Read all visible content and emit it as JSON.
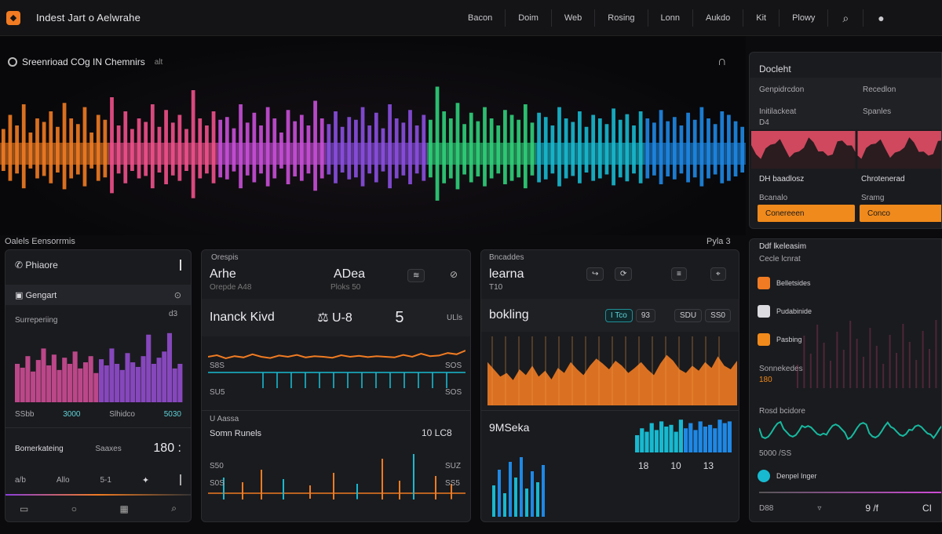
{
  "header": {
    "logo_icon": "flame-icon",
    "title": "Indest  Jart  o  Aelwrahe",
    "nav": [
      "Bacon",
      "Doim",
      "Web",
      "Rosing",
      "Lonn",
      "Aukdo",
      "Kit",
      "Plowy"
    ],
    "search_icon": "search-icon",
    "user_icon": "user-icon"
  },
  "hero": {
    "title": "Sreenrioad COg IN Chemnirs",
    "subtitle": "alt",
    "bars": [
      0.35,
      0.55,
      0.4,
      0.7,
      0.3,
      0.5,
      0.45,
      0.6,
      0.38,
      0.72,
      0.5,
      0.42,
      0.66,
      0.3,
      0.55,
      0.48,
      0.8,
      0.4,
      0.6,
      0.35,
      0.5,
      0.45,
      0.7,
      0.38,
      0.62,
      0.44,
      0.55,
      0.35,
      0.9,
      0.5,
      0.4,
      0.6,
      0.48,
      0.52,
      0.36,
      0.7,
      0.44,
      0.58,
      0.4,
      0.66,
      0.5,
      0.3,
      0.62,
      0.46,
      0.55,
      0.4,
      0.75,
      0.5,
      0.42,
      0.6,
      0.38,
      0.52,
      0.48,
      0.66,
      0.4,
      0.58,
      0.36,
      0.7,
      0.5,
      0.44,
      0.62,
      0.4,
      0.55,
      0.48,
      0.95,
      0.6,
      0.5,
      0.72,
      0.42,
      0.58,
      0.46,
      0.66,
      0.5,
      0.4,
      0.62,
      0.55,
      0.48,
      0.7,
      0.44,
      0.58,
      0.52,
      0.4,
      0.66,
      0.5,
      0.45,
      0.6,
      0.38,
      0.55,
      0.5,
      0.42,
      0.64,
      0.48,
      0.56,
      0.4,
      0.6,
      0.5,
      0.44,
      0.62,
      0.46,
      0.52,
      0.4,
      0.58,
      0.48,
      0.66,
      0.5,
      0.42,
      0.6,
      0.55,
      0.46,
      0.38
    ],
    "colors": [
      "#f07b22",
      "#f0508a",
      "#c84fd8",
      "#8a4fe0",
      "#2fd17a",
      "#17b9d0",
      "#1e88e5"
    ]
  },
  "labels": {
    "left": "Oalels Eensorrmis",
    "right": "Pyla 3"
  },
  "panel_a": {
    "title": "Phiaore",
    "section": "Gengart",
    "subtitle": "Surreperiing",
    "axis": [
      "SSbb",
      "3000",
      "Slhidco",
      "5030"
    ],
    "axis_right": "d3",
    "footer": "Bomerkateing",
    "footer_mid": "Saaxes",
    "footer_val": "180 :",
    "ctrl": [
      "a/b",
      "Allo",
      "5-1"
    ],
    "bars": [
      0.5,
      0.45,
      0.6,
      0.4,
      0.55,
      0.7,
      0.48,
      0.62,
      0.42,
      0.58,
      0.5,
      0.66,
      0.44,
      0.52,
      0.6,
      0.38,
      0.56,
      0.48,
      0.7,
      0.5,
      0.42,
      0.64,
      0.52,
      0.46,
      0.6,
      0.88,
      0.5,
      0.58,
      0.66,
      0.9,
      0.44,
      0.5
    ]
  },
  "panel_b": {
    "label": "Orespis",
    "name": "Arhe",
    "sub": "Orepde A48",
    "value": "ADea",
    "value_sub": "Ploks 50",
    "row2_label": "Inanck Kivd",
    "row2_val": "U-8",
    "row2_num": "5",
    "row2_tail": "ULls",
    "line_labels": [
      "S8S",
      "SOS",
      "SU5",
      "SOS"
    ],
    "sec2": "U Aassa",
    "sec2_title": "Somn Runels",
    "sec2_val": "10 LC8",
    "axis": [
      "S50",
      "SUZ",
      "S0S",
      "SS5"
    ],
    "line": [
      0.5,
      0.55,
      0.45,
      0.52,
      0.48,
      0.58,
      0.5,
      0.46,
      0.54,
      0.5,
      0.56,
      0.48,
      0.52,
      0.5,
      0.47,
      0.55,
      0.5,
      0.53,
      0.49,
      0.52,
      0.5,
      0.48,
      0.56,
      0.5,
      0.6,
      0.52,
      0.54,
      0.62,
      0.58,
      0.7
    ]
  },
  "panel_c": {
    "label": "Bncaddes",
    "title": "learna",
    "sub": "T10",
    "row2_label": "bokling",
    "pills": [
      "I Tco",
      "93",
      "SDU",
      "SS0"
    ],
    "sec2_title": "9MSeka",
    "sec2_vals": [
      "18",
      "10",
      "13"
    ],
    "area": [
      0.6,
      0.5,
      0.4,
      0.45,
      0.35,
      0.5,
      0.42,
      0.55,
      0.4,
      0.48,
      0.36,
      0.52,
      0.45,
      0.6,
      0.5,
      0.42,
      0.55,
      0.65,
      0.58,
      0.5,
      0.62,
      0.55,
      0.45,
      0.52,
      0.6,
      0.5,
      0.42,
      0.58,
      0.7,
      0.62,
      0.5,
      0.45,
      0.55,
      0.48,
      0.6,
      0.52,
      0.68,
      0.55,
      0.5,
      0.62
    ],
    "teal": [
      0.5,
      0.7,
      0.6,
      0.85,
      0.65,
      0.9,
      0.75,
      0.8,
      0.6,
      0.95,
      0.7,
      0.85,
      0.65,
      0.9,
      0.75,
      0.8,
      0.7,
      0.95,
      0.85,
      0.9
    ]
  },
  "panel_right": {
    "title": "Docleht",
    "cols": [
      "Genpidrcdon",
      "Recedlon"
    ],
    "sub": [
      "Initilackeat",
      "Spanles"
    ],
    "sub2": "D4",
    "names": [
      "DH baadlosz",
      "Chrotenerad"
    ],
    "status": [
      "Bcanalo",
      "Sramg"
    ],
    "buttons": [
      "Conereeen",
      "Conco"
    ],
    "list_title": "Ddf lkeleasim",
    "list_sub": "Cecle lcnrat",
    "items": [
      "Belletsides",
      "Pudabinide",
      "Pasbing"
    ],
    "item_meta": [
      "Sonnekedes",
      "180"
    ],
    "sec": "Rosd bcidore",
    "sec_meta": "5000 /SS",
    "footer_item": "Denpel Inger",
    "footer_vals": [
      "D88",
      "9 /f",
      "CI"
    ]
  }
}
